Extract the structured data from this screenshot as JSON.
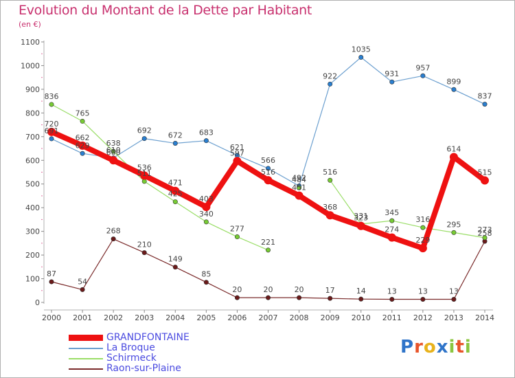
{
  "title": "Evolution du Montant de la Dette par Habitant",
  "unit": "(en €)",
  "logo": {
    "text": "Proxiti",
    "letter_colors": [
      "#2f74c9",
      "#e8542a",
      "#e8b21c",
      "#2f74c9",
      "#8bc53f",
      "#e8542a",
      "#8bc53f"
    ]
  },
  "chart_data": {
    "type": "line",
    "x": [
      "2000",
      "2001",
      "2002",
      "2003",
      "2004",
      "2005",
      "2006",
      "2007",
      "2008",
      "2009",
      "2010",
      "2011",
      "2012",
      "2013",
      "2014"
    ],
    "ylim": [
      0,
      1100
    ],
    "yticks": [
      "0",
      "100",
      "200",
      "300",
      "400",
      "500",
      "600",
      "700",
      "800",
      "900",
      "1000",
      "1100"
    ],
    "grid": false,
    "legend_position": "bottom-left",
    "series": [
      {
        "name": "GRANDFONTAINE",
        "color": "#ee1111",
        "point_color": "#ee1111",
        "values": [
          720,
          662,
          600,
          536,
          471,
          403,
          597,
          516,
          451,
          368,
          323,
          274,
          229,
          614,
          515
        ],
        "labels": [
          "720",
          "662",
          "600",
          "536",
          "471",
          "403",
          "597",
          "516",
          "451",
          "368",
          "323",
          "274",
          "229",
          "614",
          "515"
        ]
      },
      {
        "name": "La Broque",
        "color": "#6b9fcf",
        "point_color": "#2a7fd0",
        "values": [
          691,
          629,
          610,
          692,
          672,
          683,
          621,
          566,
          492,
          922,
          1035,
          931,
          957,
          899,
          837
        ],
        "labels": [
          "691",
          "629",
          "610",
          "692",
          "672",
          "683",
          "621",
          "566",
          "492",
          "922",
          "1035",
          "931",
          "957",
          "899",
          "837"
        ]
      },
      {
        "name": "Schirmeck",
        "color": "#99dd66",
        "point_color": "#77cc33",
        "values": [
          836,
          765,
          638,
          511,
          425,
          340,
          277,
          221,
          null,
          516,
          331,
          345,
          316,
          295,
          273
        ],
        "labels": [
          "836",
          "765",
          "638",
          "511",
          "425",
          "340",
          "277",
          "221",
          "",
          "516",
          "331",
          "345",
          "316",
          "295",
          "273"
        ],
        "extra_point": {
          "x": "2008",
          "value": 484,
          "label": "484"
        }
      },
      {
        "name": "Raon-sur-Plaine",
        "color": "#7a2a2a",
        "point_color": "#6b1a1a",
        "values": [
          87,
          54,
          268,
          210,
          149,
          85,
          20,
          20,
          20,
          17,
          14,
          13,
          13,
          13,
          258
        ],
        "labels": [
          "87",
          "54",
          "268",
          "210",
          "149",
          "85",
          "20",
          "20",
          "20",
          "17",
          "14",
          "13",
          "13",
          "13",
          "258"
        ]
      }
    ]
  }
}
